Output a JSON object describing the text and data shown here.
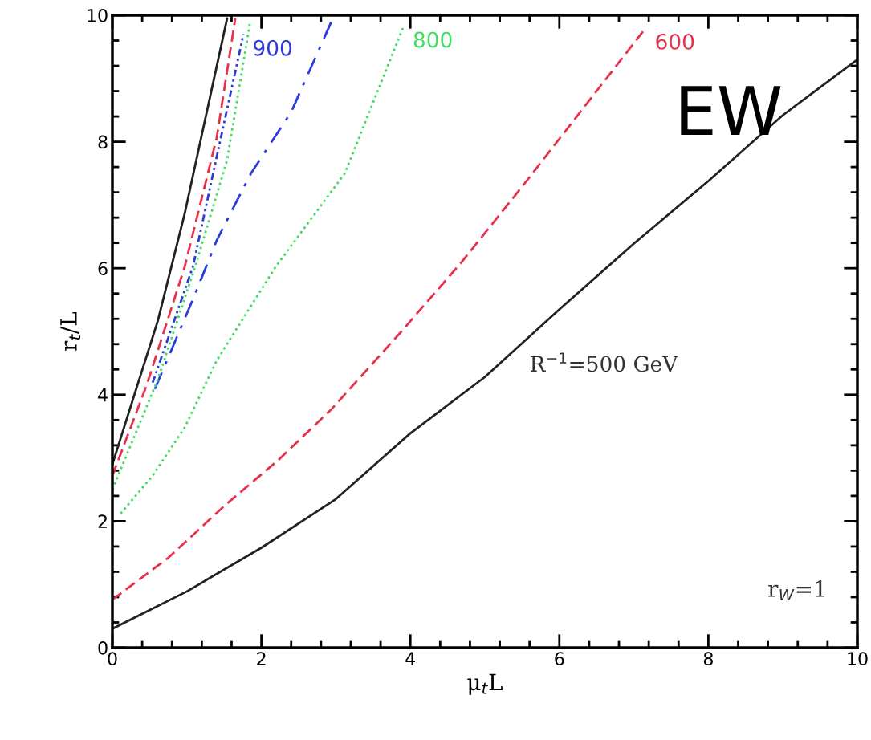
{
  "chart_data": {
    "type": "line",
    "xlabel": "μ$_{t}$L",
    "ylabel": "r$_{t}$/L",
    "xlim": [
      0,
      10
    ],
    "ylim": [
      0,
      10
    ],
    "xticks": [
      0,
      {
        "value": 0.4,
        "label": null
      },
      {
        "value": 0.8,
        "label": null
      },
      {
        "value": 1.2,
        "label": null
      },
      {
        "value": 1.6,
        "label": null
      },
      2,
      {
        "value": 2.4,
        "label": null
      },
      {
        "value": 2.8,
        "label": null
      },
      {
        "value": 3.2,
        "label": null
      },
      {
        "value": 3.6,
        "label": null
      },
      4,
      {
        "value": 4.4,
        "label": null
      },
      {
        "value": 4.8,
        "label": null
      },
      {
        "value": 5.2,
        "label": null
      },
      {
        "value": 5.6,
        "label": null
      },
      6,
      {
        "value": 6.4,
        "label": null
      },
      {
        "value": 6.8,
        "label": null
      },
      {
        "value": 7.2,
        "label": null
      },
      {
        "value": 7.6,
        "label": null
      },
      8,
      {
        "value": 8.4,
        "label": null
      },
      {
        "value": 8.8,
        "label": null
      },
      {
        "value": 9.2,
        "label": null
      },
      {
        "value": 9.6,
        "label": null
      },
      10
    ],
    "yticks": [
      0,
      {
        "value": 0.4,
        "label": null
      },
      {
        "value": 0.8,
        "label": null
      },
      {
        "value": 1.2,
        "label": null
      },
      {
        "value": 1.6,
        "label": null
      },
      2,
      {
        "value": 2.4,
        "label": null
      },
      {
        "value": 2.8,
        "label": null
      },
      {
        "value": 3.2,
        "label": null
      },
      {
        "value": 3.6,
        "label": null
      },
      4,
      {
        "value": 4.4,
        "label": null
      },
      {
        "value": 4.8,
        "label": null
      },
      {
        "value": 5.2,
        "label": null
      },
      {
        "value": 5.6,
        "label": null
      },
      6,
      {
        "value": 6.4,
        "label": null
      },
      {
        "value": 6.8,
        "label": null
      },
      {
        "value": 7.2,
        "label": null
      },
      {
        "value": 7.6,
        "label": null
      },
      8,
      {
        "value": 8.4,
        "label": null
      },
      {
        "value": 8.8,
        "label": null
      },
      {
        "value": 9.2,
        "label": null
      },
      {
        "value": 9.6,
        "label": null
      },
      10
    ],
    "grid": false,
    "legend": false,
    "marker": "none",
    "series": [
      {
        "name": "R$^{−1}$=500 GeV",
        "color": "#222222",
        "line_style": "solid",
        "x": [
          0,
          1,
          2,
          3,
          4,
          5,
          6,
          7,
          8,
          9,
          10
        ],
        "values": [
          0.3,
          0.89,
          1.58,
          2.35,
          3.39,
          4.28,
          5.35,
          6.39,
          7.38,
          8.42,
          9.3
        ]
      },
      {
        "name": "600",
        "color": "#e8304a",
        "line_style": "dashed",
        "x": [
          0,
          0.75,
          1.51,
          2.23,
          2.94,
          3.88,
          4.69,
          5.5,
          7.16
        ],
        "values": [
          0.76,
          1.42,
          2.25,
          2.97,
          3.77,
          5.0,
          6.1,
          7.29,
          9.8
        ]
      },
      {
        "name": "800",
        "color": "#40dd60",
        "line_style": "dotted",
        "x": [
          0.11,
          0.54,
          0.97,
          1.4,
          2.19,
          3.12,
          3.91
        ],
        "values": [
          2.12,
          2.72,
          3.48,
          4.54,
          6.02,
          7.5,
          9.83
        ]
      },
      {
        "color": "#2a3adc",
        "line_style": "dashdot",
        "x": [
          0.57,
          1.11,
          1.4,
          1.86,
          2.4,
          2.94
        ],
        "values": [
          4.09,
          5.59,
          6.44,
          7.5,
          8.47,
          9.9
        ]
      },
      {
        "name": "900",
        "color": "#2a3adc",
        "line_style": "dashdotdot",
        "x": [
          0.54,
          1.08,
          1.47,
          1.76
        ],
        "values": [
          4.19,
          6.02,
          8.14,
          9.7
        ]
      },
      {
        "color": "#40dd60",
        "line_style": "dotted",
        "x": [
          0,
          0.61,
          1.11,
          1.54,
          1.85
        ],
        "values": [
          2.5,
          4.24,
          6.02,
          7.71,
          9.9
        ]
      },
      {
        "color": "#e8304a",
        "line_style": "dashed",
        "x": [
          0,
          0.46,
          0.97,
          1.4,
          1.65
        ],
        "values": [
          2.72,
          4.15,
          6.02,
          8.06,
          9.95
        ]
      },
      {
        "color": "#222222",
        "line_style": "solid",
        "x": [
          0,
          0.61,
          0.97,
          1.54
        ],
        "values": [
          2.9,
          5.17,
          6.86,
          9.95
        ]
      }
    ],
    "annotations": [
      "r$_{W}$=1",
      "EW"
    ]
  }
}
